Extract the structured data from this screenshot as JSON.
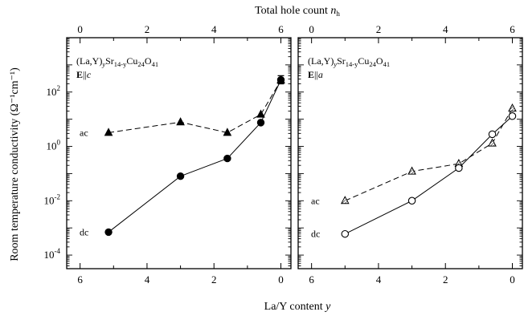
{
  "chart_data": [
    {
      "type": "scatter",
      "panel": "left",
      "annotation": {
        "formula_prefix": "(La,Y)",
        "sub_y": "y",
        "formula_mid": "Sr",
        "sub_sr": "14-y",
        "formula_cu": "Cu",
        "sub_cu": "24",
        "formula_o": "O",
        "sub_o": "41",
        "field_bold": "E",
        "field_rest": "||",
        "field_axis": "c"
      },
      "x_bottom": {
        "label_main": "La/Y content ",
        "label_var": "y",
        "lim": [
          6.4,
          -0.3
        ],
        "ticks": [
          6,
          4,
          2,
          0
        ],
        "reversed": true
      },
      "x_top": {
        "label_main": "Total hole count ",
        "label_var": "n",
        "label_sub": "h",
        "ticks": [
          0,
          2,
          4,
          6
        ]
      },
      "y": {
        "label": "Room temperature conductivity (Ω⁻¹cm⁻¹)",
        "scale": "log",
        "lim_exp": [
          -4.5,
          4
        ],
        "tick_exponents": [
          -4,
          -2,
          0,
          2
        ],
        "tick_mantissa": "10"
      },
      "series": [
        {
          "label": "ac",
          "marker": "filled-triangle",
          "line": "dashed",
          "x": [
            5.15,
            3.0,
            1.6,
            0.6,
            0.0
          ],
          "y": [
            3.2,
            7.8,
            3.2,
            15,
            270
          ]
        },
        {
          "label": "dc",
          "marker": "filled-circle",
          "line": "solid",
          "x": [
            5.15,
            3.0,
            1.6,
            0.6,
            0.0
          ],
          "y": [
            0.0007,
            0.08,
            0.36,
            7.5,
            280
          ],
          "error_at_last": [
            200,
            400
          ]
        }
      ]
    },
    {
      "type": "scatter",
      "panel": "right",
      "annotation": {
        "formula_prefix": "(La,Y)",
        "sub_y": "y",
        "formula_mid": "Sr",
        "sub_sr": "14-y",
        "formula_cu": "Cu",
        "sub_cu": "24",
        "formula_o": "O",
        "sub_o": "41",
        "field_bold": "E",
        "field_rest": "||",
        "field_axis": "a"
      },
      "x_bottom": {
        "lim": [
          6.4,
          -0.3
        ],
        "ticks": [
          6,
          4,
          2,
          0
        ],
        "reversed": true
      },
      "x_top": {
        "ticks": [
          0,
          2,
          4,
          6
        ]
      },
      "y": {
        "scale": "log",
        "lim_exp": [
          -4.5,
          4
        ],
        "tick_exponents": [
          -4,
          -2,
          0,
          2
        ]
      },
      "series": [
        {
          "label": "ac",
          "marker": "hatched-triangle",
          "line": "dashed",
          "x": [
            5.0,
            3.0,
            1.6,
            0.6,
            0.0
          ],
          "y": [
            0.01,
            0.12,
            0.23,
            1.3,
            25
          ]
        },
        {
          "label": "dc",
          "marker": "open-circle",
          "line": "solid",
          "x": [
            5.0,
            3.0,
            1.6,
            0.6,
            0.0
          ],
          "y": [
            0.0006,
            0.01,
            0.16,
            2.8,
            13
          ]
        }
      ]
    }
  ]
}
